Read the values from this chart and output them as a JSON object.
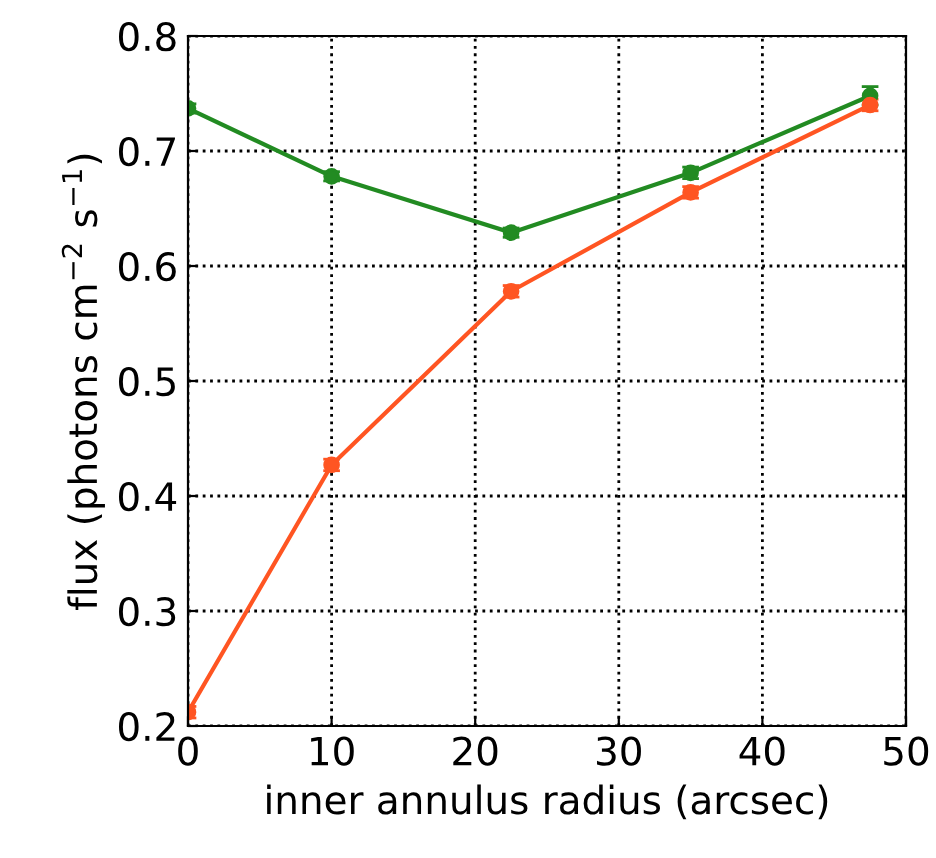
{
  "chart_data": {
    "type": "line",
    "xlabel": "inner annulus radius (arcsec)",
    "ylabel": "flux (photons cm$^{−2}$ s$^{−1}$)",
    "x": [
      0,
      10,
      22.5,
      35,
      47.5
    ],
    "series": [
      {
        "color": "#228b22",
        "values": [
          0.737,
          0.678,
          0.629,
          0.681,
          0.748
        ],
        "errors": [
          0.004,
          0.004,
          0.004,
          0.005,
          0.008
        ]
      },
      {
        "color": "#ff5522",
        "values": [
          0.212,
          0.427,
          0.578,
          0.664,
          0.74
        ],
        "errors": [
          0.005,
          0.005,
          0.005,
          0.005,
          0.005
        ]
      }
    ],
    "xlim": [
      0,
      50
    ],
    "xticks": [
      0,
      10,
      20,
      30,
      40,
      50
    ],
    "ylim": [
      0.2,
      0.8
    ],
    "yticks": [
      0.2,
      0.3,
      0.4,
      0.5,
      0.6,
      0.7,
      0.8
    ],
    "grid": true,
    "marker": "circle",
    "line_style": "solid"
  }
}
